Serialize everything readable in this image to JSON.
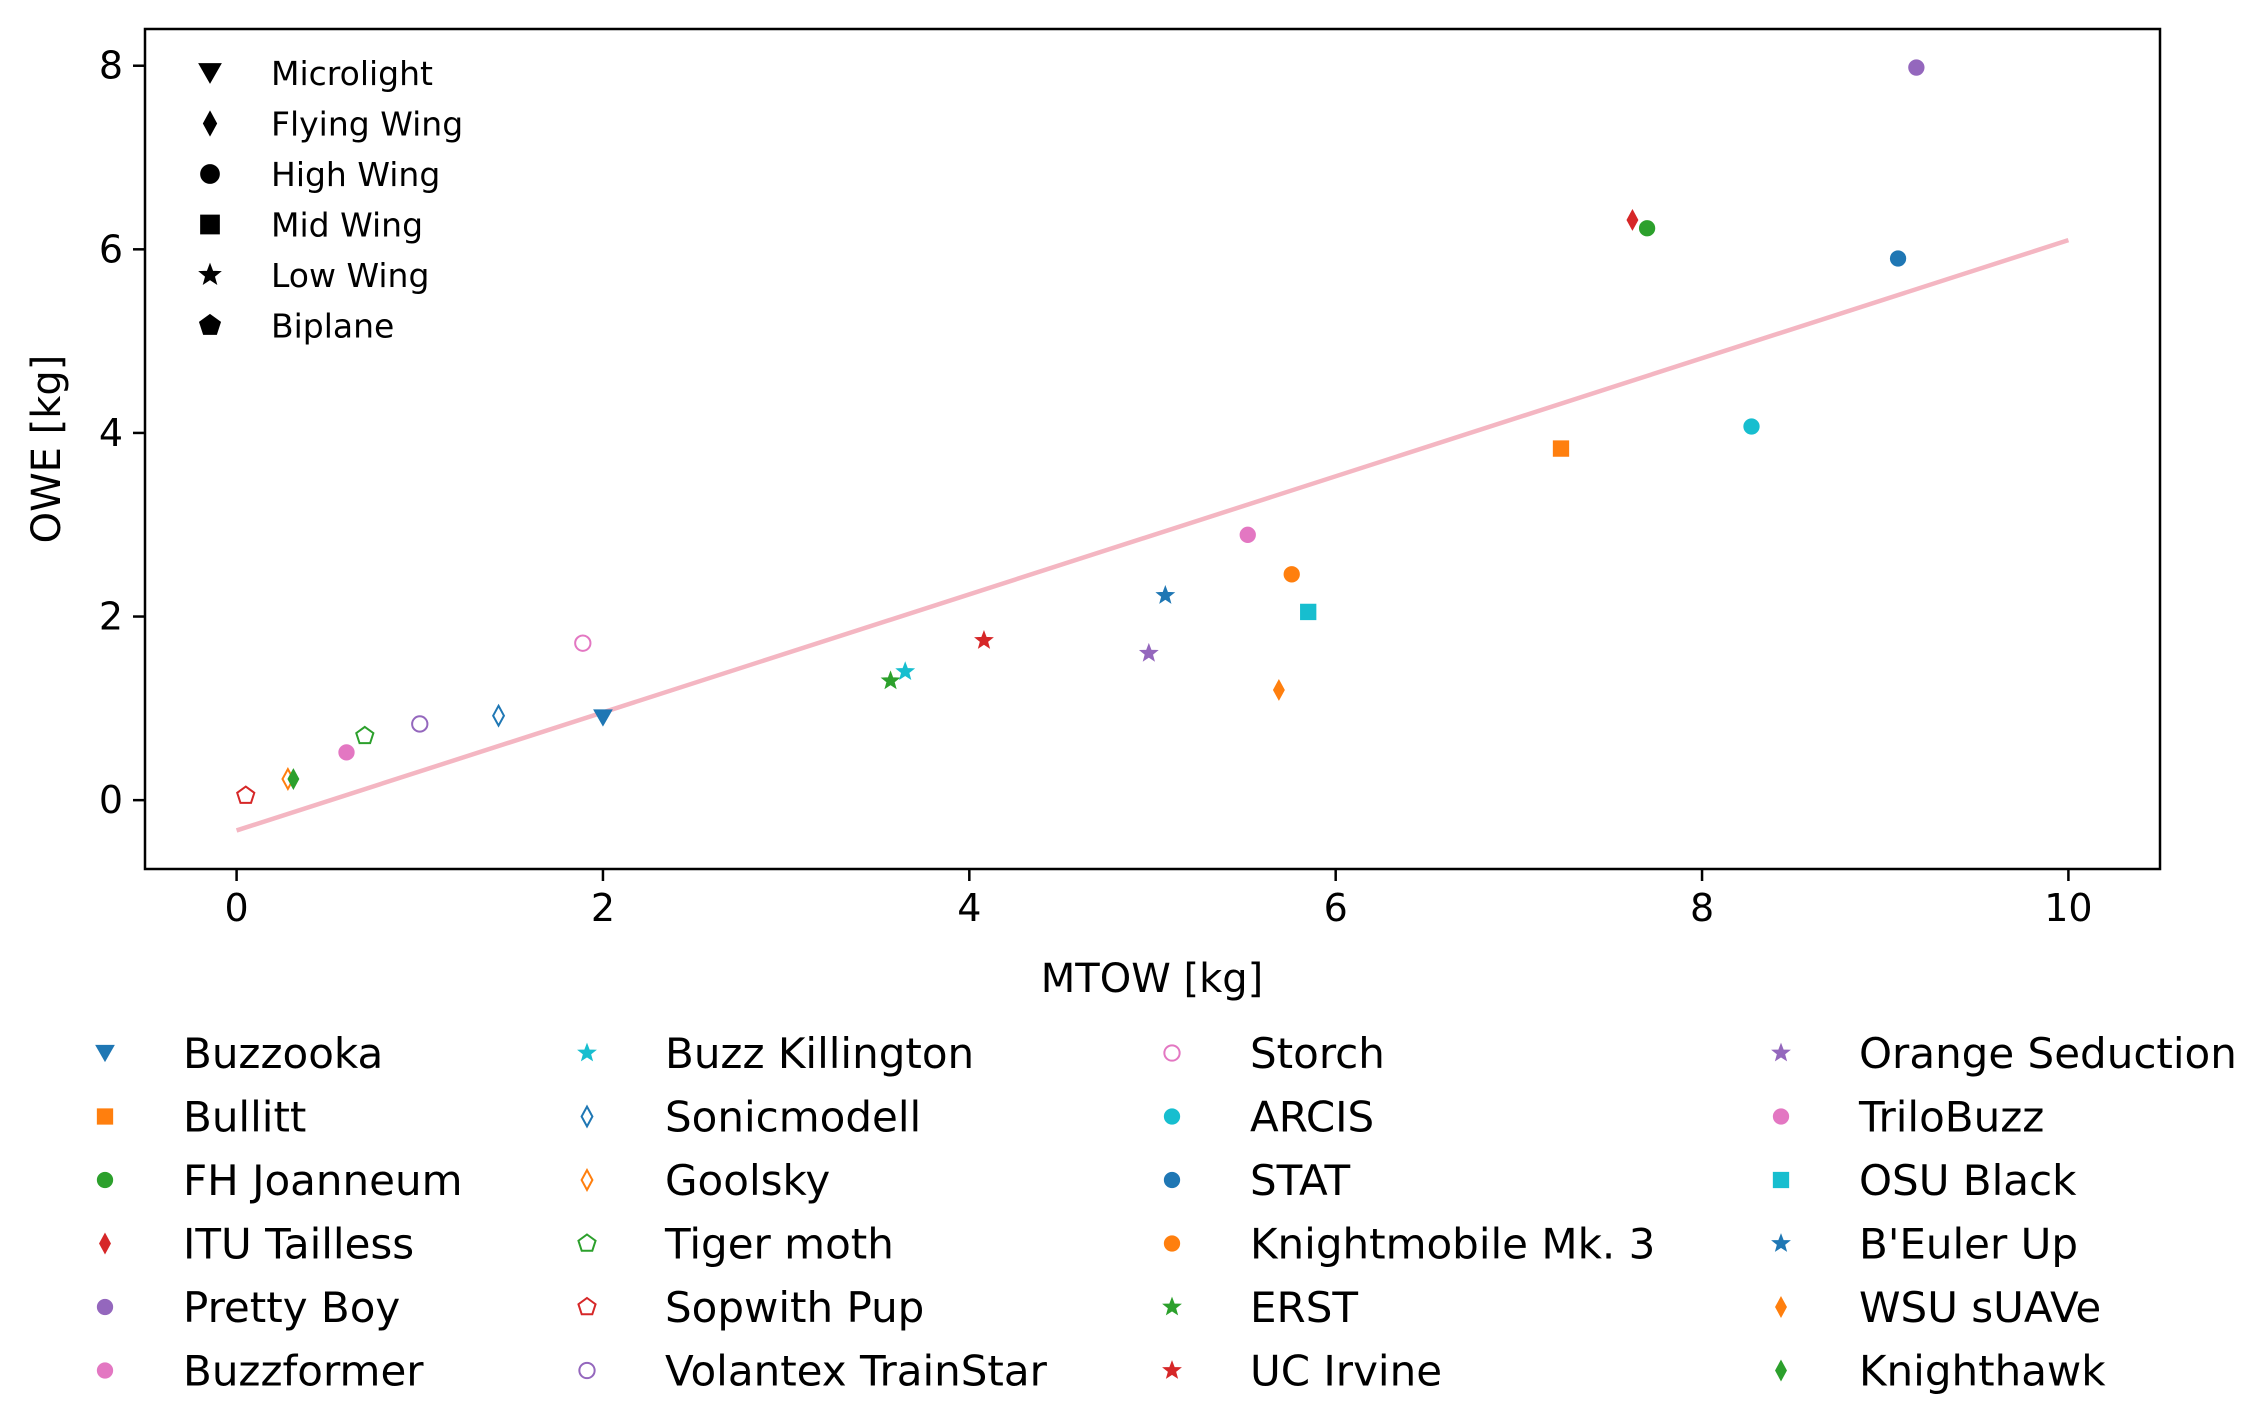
{
  "chart_data": {
    "type": "scatter",
    "xlabel": "MTOW [kg]",
    "ylabel": "OWE [kg]",
    "xlim": [
      -0.5,
      10.5
    ],
    "ylim": [
      -0.75,
      8.4
    ],
    "xticks": [
      0,
      2,
      4,
      6,
      8,
      10
    ],
    "yticks": [
      0,
      2,
      4,
      6,
      8
    ],
    "grid": false,
    "colors": {
      "blue": "#1f77b4",
      "orange": "#ff7f0e",
      "green": "#2ca02c",
      "red": "#d62728",
      "purple": "#9467bd",
      "pink": "#e377c2",
      "cyan": "#17becf",
      "trend": "#f4b6c2"
    },
    "shape_legend": {
      "position": "upper-left",
      "entries": [
        {
          "label": "Microlight",
          "marker": "triangle-down"
        },
        {
          "label": "Flying Wing",
          "marker": "diamond"
        },
        {
          "label": "High Wing",
          "marker": "circle"
        },
        {
          "label": "Mid Wing",
          "marker": "square"
        },
        {
          "label": "Low Wing",
          "marker": "star"
        },
        {
          "label": "Biplane",
          "marker": "pentagon"
        }
      ]
    },
    "trendline": {
      "x": [
        0,
        10
      ],
      "y": [
        -0.33,
        6.1
      ],
      "color": "#f4b6c2"
    },
    "series": [
      {
        "name": "Buzzooka",
        "x": 2.0,
        "y": 0.9,
        "marker": "triangle-down",
        "color": "#1f77b4",
        "filled": true
      },
      {
        "name": "Bullitt",
        "x": 7.23,
        "y": 3.83,
        "marker": "square",
        "color": "#ff7f0e",
        "filled": true
      },
      {
        "name": "FH Joanneum",
        "x": 7.7,
        "y": 6.23,
        "marker": "circle",
        "color": "#2ca02c",
        "filled": true
      },
      {
        "name": "ITU Tailless",
        "x": 7.62,
        "y": 6.32,
        "marker": "diamond",
        "color": "#d62728",
        "filled": true
      },
      {
        "name": "Pretty Boy",
        "x": 9.17,
        "y": 7.98,
        "marker": "circle",
        "color": "#9467bd",
        "filled": true
      },
      {
        "name": "Buzzformer",
        "x": 0.6,
        "y": 0.52,
        "marker": "circle",
        "color": "#e377c2",
        "filled": true
      },
      {
        "name": "Buzz Killington",
        "x": 3.65,
        "y": 1.4,
        "marker": "star",
        "color": "#17becf",
        "filled": true
      },
      {
        "name": "Sonicmodell",
        "x": 1.43,
        "y": 0.92,
        "marker": "diamond",
        "color": "#1f77b4",
        "filled": false
      },
      {
        "name": "Goolsky",
        "x": 0.28,
        "y": 0.23,
        "marker": "diamond",
        "color": "#ff7f0e",
        "filled": false
      },
      {
        "name": "Tiger moth",
        "x": 0.7,
        "y": 0.7,
        "marker": "pentagon",
        "color": "#2ca02c",
        "filled": false
      },
      {
        "name": "Sopwith Pup",
        "x": 0.05,
        "y": 0.05,
        "marker": "pentagon",
        "color": "#d62728",
        "filled": false
      },
      {
        "name": "Volantex TrainStar",
        "x": 1.0,
        "y": 0.83,
        "marker": "circle",
        "color": "#9467bd",
        "filled": false
      },
      {
        "name": "Storch",
        "x": 1.89,
        "y": 1.71,
        "marker": "circle",
        "color": "#e377c2",
        "filled": false
      },
      {
        "name": "ARCIS",
        "x": 8.27,
        "y": 4.07,
        "marker": "circle",
        "color": "#17becf",
        "filled": true
      },
      {
        "name": "STAT",
        "x": 9.07,
        "y": 5.9,
        "marker": "circle",
        "color": "#1f77b4",
        "filled": true
      },
      {
        "name": "Knightmobile Mk. 3",
        "x": 5.76,
        "y": 2.46,
        "marker": "circle",
        "color": "#ff7f0e",
        "filled": true
      },
      {
        "name": "ERST",
        "x": 3.57,
        "y": 1.3,
        "marker": "star",
        "color": "#2ca02c",
        "filled": true
      },
      {
        "name": "UC Irvine",
        "x": 4.08,
        "y": 1.74,
        "marker": "star",
        "color": "#d62728",
        "filled": true
      },
      {
        "name": "Orange Seduction",
        "x": 4.98,
        "y": 1.6,
        "marker": "star",
        "color": "#9467bd",
        "filled": true
      },
      {
        "name": "TriloBuzz",
        "x": 5.52,
        "y": 2.89,
        "marker": "circle",
        "color": "#e377c2",
        "filled": true
      },
      {
        "name": "OSU Black",
        "x": 5.85,
        "y": 2.05,
        "marker": "square",
        "color": "#17becf",
        "filled": true
      },
      {
        "name": "B'Euler Up",
        "x": 5.07,
        "y": 2.23,
        "marker": "star",
        "color": "#1f77b4",
        "filled": true
      },
      {
        "name": "WSU sUAVe",
        "x": 5.69,
        "y": 1.2,
        "marker": "diamond",
        "color": "#ff7f0e",
        "filled": true
      },
      {
        "name": "Knighthawk",
        "x": 0.31,
        "y": 0.23,
        "marker": "diamond",
        "color": "#2ca02c",
        "filled": true
      }
    ]
  }
}
